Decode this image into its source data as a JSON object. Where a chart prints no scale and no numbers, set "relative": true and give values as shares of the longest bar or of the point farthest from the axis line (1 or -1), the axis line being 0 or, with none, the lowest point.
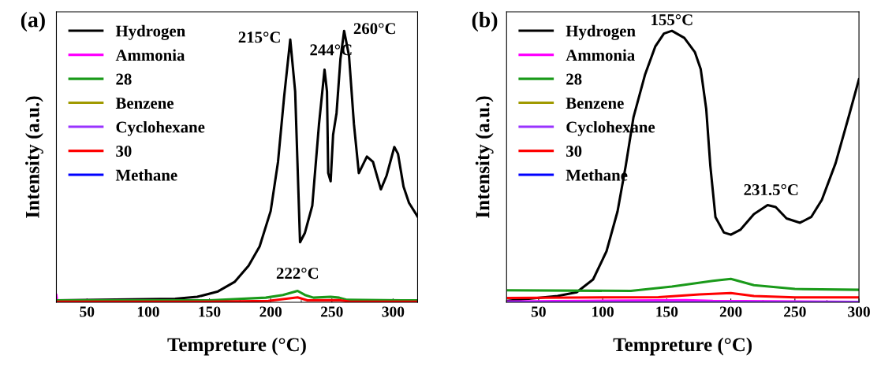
{
  "chart_data": [
    {
      "type": "line",
      "title": "(a)",
      "xlabel": "Tempreture (°C)",
      "ylabel": "Intensity (a.u.)",
      "relative": true,
      "xlim": [
        25,
        320
      ],
      "xticks": [
        50,
        100,
        150,
        200,
        250,
        300
      ],
      "legend": "top left",
      "grid": false,
      "annotations": [
        {
          "text": "215°C",
          "x": 216,
          "y": 0.968
        },
        {
          "text": "244°C",
          "x": 244,
          "y": 0.857
        },
        {
          "text": "260°C",
          "x": 260,
          "y": 1.0
        },
        {
          "text": "222°C",
          "x": 222,
          "y": 0.042
        }
      ],
      "series": [
        {
          "name": "Hydrogen",
          "color": "#000000",
          "x": [
            25,
            122,
            140,
            157,
            170.5,
            182,
            191,
            200,
            206,
            211,
            216,
            220,
            224,
            228,
            234,
            239.5,
            244,
            246,
            247,
            249,
            251,
            253.8,
            257,
            260,
            264,
            268,
            272,
            278.6,
            283.6,
            290,
            294.7,
            301,
            304,
            308.5,
            313,
            320
          ],
          "values": [
            0.007,
            0.013,
            0.02,
            0.04,
            0.075,
            0.135,
            0.206,
            0.336,
            0.517,
            0.757,
            0.968,
            0.777,
            0.221,
            0.256,
            0.356,
            0.657,
            0.857,
            0.777,
            0.476,
            0.446,
            0.617,
            0.697,
            0.897,
            1.0,
            0.908,
            0.657,
            0.476,
            0.537,
            0.517,
            0.416,
            0.467,
            0.572,
            0.547,
            0.426,
            0.366,
            0.316
          ]
        },
        {
          "name": "Ammonia",
          "color": "#ff00ff",
          "x": [
            25,
            25.6
          ],
          "values": [
            0.027,
            0.004
          ]
        },
        {
          "name": "28",
          "color": "#1a9a1a",
          "x": [
            25,
            150,
            196,
            210,
            222,
            228,
            235,
            249,
            256,
            262.5,
            320
          ],
          "values": [
            0.007,
            0.007,
            0.017,
            0.027,
            0.042,
            0.027,
            0.017,
            0.02,
            0.017,
            0.009,
            0.007
          ]
        },
        {
          "name": "Benzene",
          "color": "#a09a00"
        },
        {
          "name": "Cyclohexane",
          "color": "#9933ff"
        },
        {
          "name": "30",
          "color": "#ff0000",
          "x": [
            25,
            150,
            198,
            222,
            230,
            256,
            265,
            320
          ],
          "values": [
            0.002,
            0.002,
            0.005,
            0.018,
            0.007,
            0.008,
            0.002,
            0.002
          ]
        },
        {
          "name": "Methane",
          "color": "#0000ff"
        }
      ]
    },
    {
      "type": "line",
      "title": "(b)",
      "xlabel": "Tempreture (°C)",
      "ylabel": "Intensity (a.u.)",
      "relative": true,
      "xlim": [
        25,
        300
      ],
      "xticks": [
        50,
        100,
        150,
        200,
        250,
        300
      ],
      "legend": "top left",
      "grid": false,
      "annotations": [
        {
          "text": "155°C",
          "x": 154,
          "y": 1.0
        },
        {
          "text": "231.5°C",
          "x": 231.5,
          "y": 0.358
        }
      ],
      "series": [
        {
          "name": "Hydrogen",
          "color": "#000000",
          "x": [
            25,
            64.8,
            79.7,
            92.5,
            103,
            111.6,
            118,
            124,
            133,
            141,
            147.8,
            154,
            163.7,
            172,
            176.5,
            180.8,
            184,
            188,
            194.6,
            200,
            207.4,
            218,
            228.7,
            235,
            243.5,
            254,
            262.7,
            271,
            281.8,
            292.4,
            300
          ],
          "values": [
            0.005,
            0.023,
            0.037,
            0.084,
            0.188,
            0.335,
            0.503,
            0.681,
            0.838,
            0.942,
            0.99,
            1.0,
            0.974,
            0.921,
            0.859,
            0.712,
            0.503,
            0.314,
            0.257,
            0.249,
            0.267,
            0.325,
            0.358,
            0.351,
            0.309,
            0.293,
            0.314,
            0.377,
            0.513,
            0.691,
            0.822
          ]
        },
        {
          "name": "Ammonia",
          "color": "#ff00ff",
          "x": [
            25,
            165,
            186,
            300
          ],
          "values": [
            0.003,
            0.008,
            0.005,
            0.001
          ]
        },
        {
          "name": "28",
          "color": "#1a9a1a",
          "x": [
            25,
            122,
            154,
            186,
            200,
            218,
            250,
            300
          ],
          "values": [
            0.044,
            0.042,
            0.058,
            0.079,
            0.086,
            0.063,
            0.049,
            0.046
          ]
        },
        {
          "name": "Benzene",
          "color": "#a09a00"
        },
        {
          "name": "Cyclohexane",
          "color": "#9933ff",
          "x": [
            25,
            300
          ],
          "values": [
            0.001,
            0.001
          ]
        },
        {
          "name": "30",
          "color": "#ff0000",
          "x": [
            25,
            143.5,
            175.5,
            200,
            218,
            250,
            300
          ],
          "values": [
            0.016,
            0.019,
            0.029,
            0.034,
            0.023,
            0.018,
            0.018
          ]
        },
        {
          "name": "Methane",
          "color": "#0000ff"
        }
      ]
    }
  ]
}
